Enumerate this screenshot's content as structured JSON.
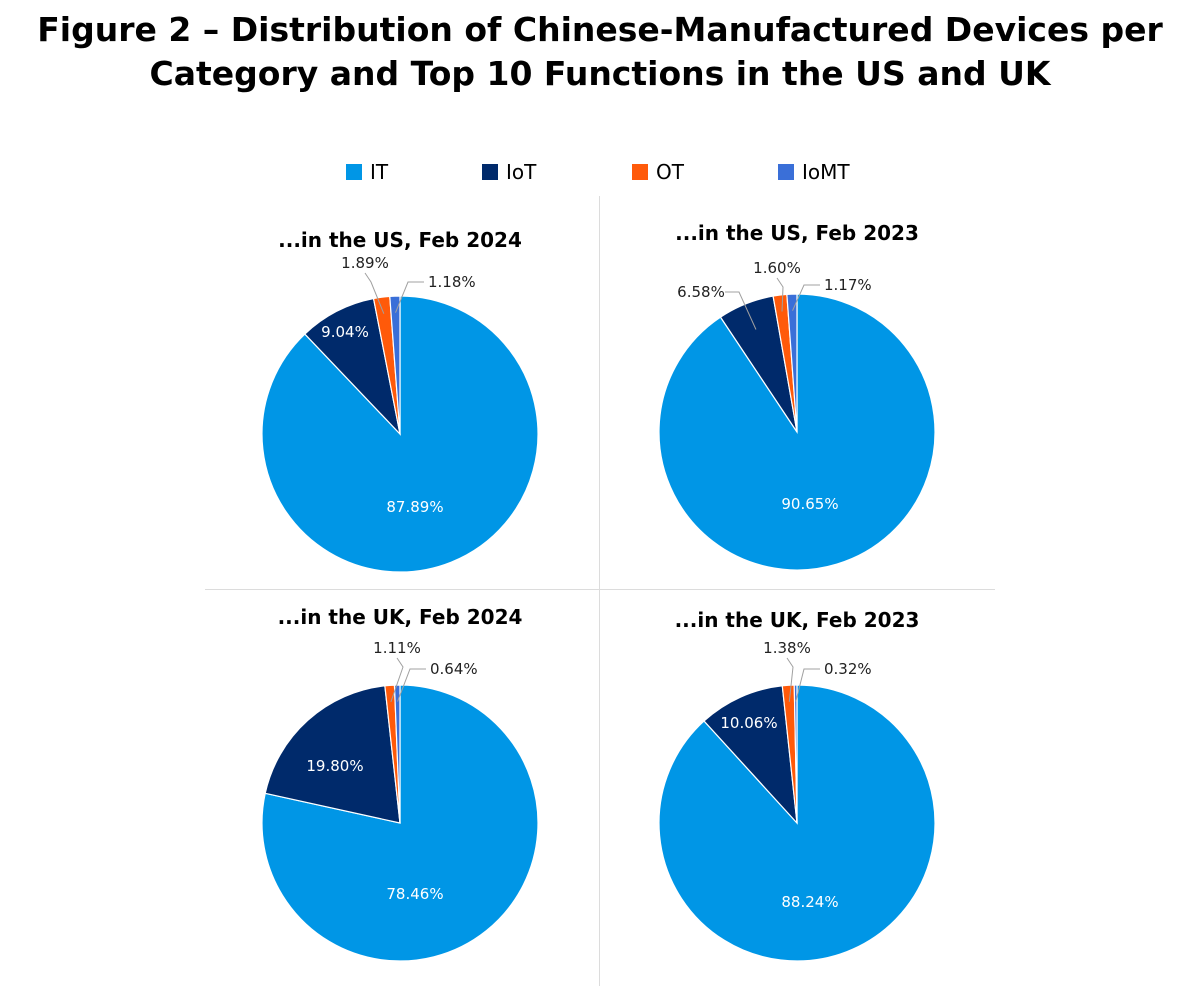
{
  "title_line1": "Figure 2 – Distribution of Chinese-Manufactured Devices per",
  "title_line2": "Category and Top 10 Functions in the US and UK",
  "chart_data": [
    {
      "type": "pie",
      "title": "...in the US, Feb 2024",
      "categories": [
        "IT",
        "IoT",
        "OT",
        "IoMT"
      ],
      "values": [
        87.89,
        9.04,
        1.89,
        1.18
      ],
      "labels": [
        "87.89%",
        "9.04%",
        "1.89%",
        "1.18%"
      ],
      "colors": [
        "#0096e6",
        "#002a6b",
        "#ff5a0a",
        "#3a6fd8"
      ]
    },
    {
      "type": "pie",
      "title": "...in the US, Feb 2023",
      "categories": [
        "IT",
        "IoT",
        "OT",
        "IoMT"
      ],
      "values": [
        90.65,
        6.58,
        1.6,
        1.17
      ],
      "labels": [
        "90.65%",
        "6.58%",
        "1.60%",
        "1.17%"
      ],
      "colors": [
        "#0096e6",
        "#002a6b",
        "#ff5a0a",
        "#3a6fd8"
      ]
    },
    {
      "type": "pie",
      "title": "...in the UK, Feb 2024",
      "categories": [
        "IT",
        "IoT",
        "OT",
        "IoMT"
      ],
      "values": [
        78.46,
        19.8,
        1.11,
        0.64
      ],
      "labels": [
        "78.46%",
        "19.80%",
        "1.11%",
        "0.64%"
      ],
      "colors": [
        "#0096e6",
        "#002a6b",
        "#ff5a0a",
        "#3a6fd8"
      ]
    },
    {
      "type": "pie",
      "title": "...in the UK, Feb 2023",
      "categories": [
        "IT",
        "IoT",
        "OT",
        "IoMT"
      ],
      "values": [
        88.24,
        10.06,
        1.38,
        0.32
      ],
      "labels": [
        "88.24%",
        "10.06%",
        "1.38%",
        "0.32%"
      ],
      "colors": [
        "#0096e6",
        "#002a6b",
        "#ff5a0a",
        "#3a6fd8"
      ]
    }
  ],
  "legend": {
    "items": [
      {
        "label": "IT",
        "color": "#0096e6"
      },
      {
        "label": "IoT",
        "color": "#002a6b"
      },
      {
        "label": "OT",
        "color": "#ff5a0a"
      },
      {
        "label": "IoMT",
        "color": "#3a6fd8"
      }
    ],
    "placement": "top"
  }
}
